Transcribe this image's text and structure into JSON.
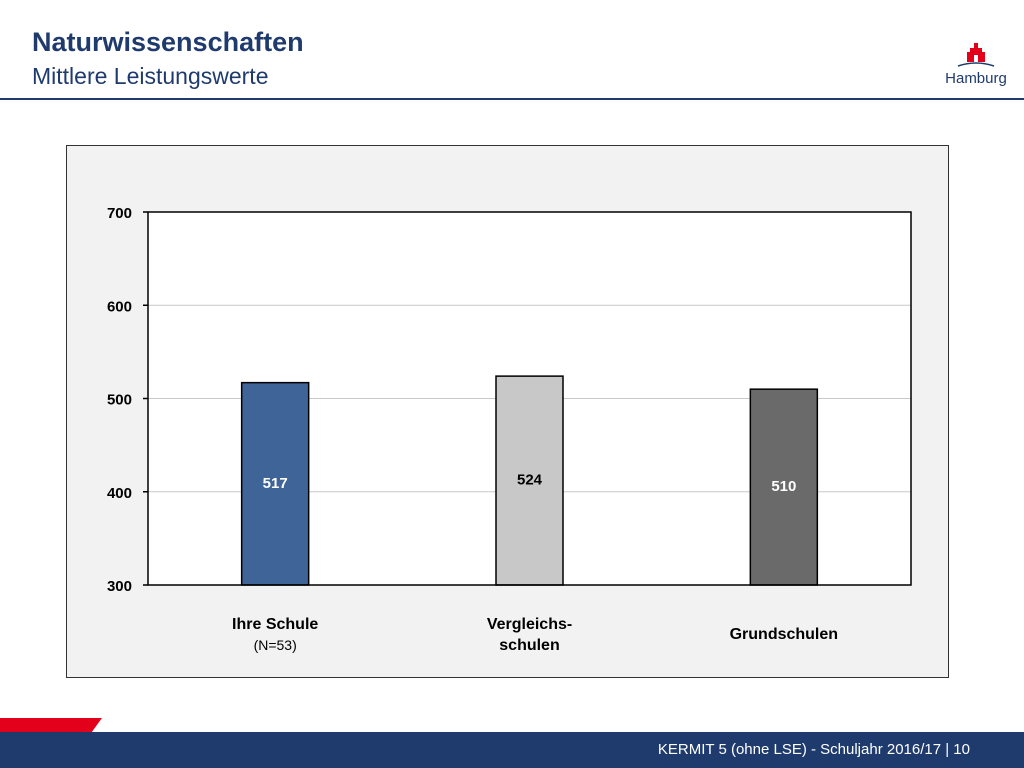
{
  "header": {
    "title": "Naturwissenschaften",
    "subtitle": "Mittlere Leistungswerte",
    "logo_text": "Hamburg"
  },
  "footer": {
    "text": "KERMIT 5 (ohne LSE) - Schuljahr 2016/17 | 10"
  },
  "colors": {
    "brand_blue": "#1f3b6e",
    "brand_red": "#e2001a"
  },
  "chart_data": {
    "type": "bar",
    "categories": [
      "Ihre Schule",
      "Vergleichs-schulen",
      "Grundschulen"
    ],
    "category_lines": [
      [
        "Ihre Schule",
        "(N=53)"
      ],
      [
        "Vergleichs-",
        "schulen"
      ],
      [
        "Grundschulen"
      ]
    ],
    "values": [
      517,
      524,
      510
    ],
    "bar_colors": [
      "#3f6598",
      "#c8c8c8",
      "#6a6a6a"
    ],
    "label_colors": [
      "#ffffff",
      "#000000",
      "#ffffff"
    ],
    "ylim": [
      300,
      700
    ],
    "yticks": [
      300,
      400,
      500,
      600,
      700
    ],
    "grid": true
  }
}
